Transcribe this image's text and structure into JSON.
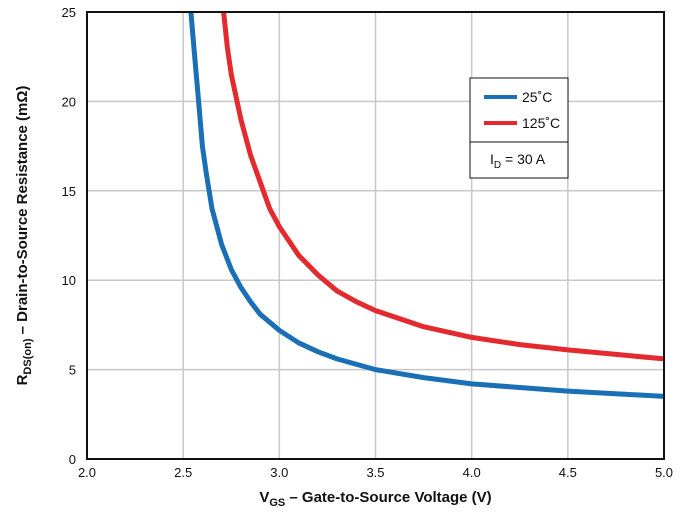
{
  "chart_data": {
    "type": "line",
    "xlabel": {
      "main": "V",
      "sub": "GS",
      "rest": " – Gate-to-Source Voltage (V)"
    },
    "ylabel": {
      "main": "R",
      "sub": "DS(on)",
      "rest": " – Drain-to-Source Resistance (mΩ)"
    },
    "xlim": [
      2.0,
      5.0
    ],
    "ylim": [
      0,
      25
    ],
    "xticks": [
      2.0,
      2.5,
      3.0,
      3.5,
      4.0,
      4.5,
      5.0
    ],
    "xtick_labels": [
      "2.0",
      "2.5",
      "3.0",
      "3.5",
      "4.0",
      "4.5",
      "5.0"
    ],
    "yticks": [
      0,
      5,
      10,
      15,
      20,
      25
    ],
    "ytick_labels": [
      "0",
      "5",
      "10",
      "15",
      "20",
      "25"
    ],
    "grid": true,
    "legend_position": "top-right",
    "series": [
      {
        "name": "25˚C",
        "color": "#1a6fb5",
        "x": [
          2.54,
          2.56,
          2.58,
          2.6,
          2.62,
          2.65,
          2.7,
          2.75,
          2.8,
          2.85,
          2.9,
          3.0,
          3.1,
          3.2,
          3.3,
          3.5,
          3.75,
          4.0,
          4.25,
          4.5,
          4.75,
          5.0
        ],
        "y": [
          25.0,
          22.5,
          20.0,
          17.5,
          16.0,
          14.0,
          12.0,
          10.6,
          9.6,
          8.8,
          8.1,
          7.2,
          6.5,
          6.0,
          5.6,
          5.0,
          4.55,
          4.2,
          4.0,
          3.8,
          3.65,
          3.5
        ]
      },
      {
        "name": "125˚C",
        "color": "#e52a2f",
        "x": [
          2.71,
          2.73,
          2.75,
          2.8,
          2.85,
          2.9,
          2.95,
          3.0,
          3.1,
          3.2,
          3.3,
          3.4,
          3.5,
          3.75,
          4.0,
          4.25,
          4.5,
          4.75,
          5.0
        ],
        "y": [
          25.0,
          23.0,
          21.5,
          19.0,
          17.0,
          15.5,
          14.0,
          13.0,
          11.4,
          10.3,
          9.4,
          8.8,
          8.3,
          7.4,
          6.8,
          6.4,
          6.1,
          5.85,
          5.6
        ]
      }
    ],
    "legend_note": {
      "main": "I",
      "sub": "D",
      "rest": " = 30 A"
    }
  }
}
